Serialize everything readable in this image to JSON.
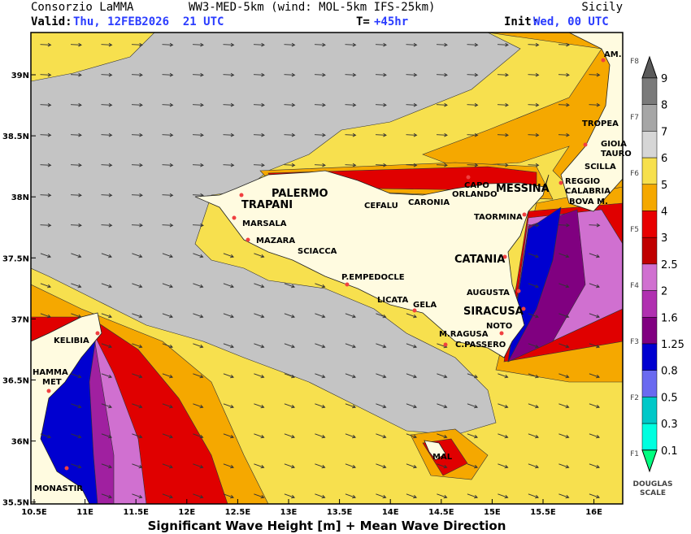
{
  "header": {
    "agency": "Consorzio LaMMA",
    "model": "WW3-MED-5km (wind: MOL-5km IFS-25km)",
    "region": "Sicily",
    "valid_label": "Valid:",
    "valid_time": "Thu, 12FEB2026  21 UTC",
    "step_label": "T=",
    "step": "+45hr",
    "init_label": "Init:",
    "init_time": "Wed, 00 UTC"
  },
  "map": {
    "lon_ticks": [
      "10.5E",
      "11E",
      "11.5E",
      "12E",
      "12.5E",
      "13E",
      "13.5E",
      "14E",
      "14.5E",
      "15E",
      "15.5E",
      "16E"
    ],
    "lat_ticks": [
      "39N",
      "38.5N",
      "38N",
      "37.5N",
      "37N",
      "36.5N",
      "36N",
      "35.5N"
    ],
    "places": [
      {
        "label": "AM."
      },
      {
        "label": "TROPEA"
      },
      {
        "label": "GIOIA"
      },
      {
        "label": "TAURO"
      },
      {
        "label": "SCILLA"
      },
      {
        "label": "REGGIO"
      },
      {
        "label": "CALABRIA"
      },
      {
        "label": "BOVA M."
      },
      {
        "label": "CAPO"
      },
      {
        "label": "ORLANDO"
      },
      {
        "label": "MESSINA"
      },
      {
        "label": "PALERMO"
      },
      {
        "label": "CEFALU"
      },
      {
        "label": "CARONIA"
      },
      {
        "label": "TRAPANI"
      },
      {
        "label": "MARSALA"
      },
      {
        "label": "MAZARA"
      },
      {
        "label": "SCIACCA"
      },
      {
        "label": "TAORMINA"
      },
      {
        "label": "CATANIA"
      },
      {
        "label": "P.EMPEDOCLE"
      },
      {
        "label": "AUGUSTA"
      },
      {
        "label": "SIRACUSA"
      },
      {
        "label": "LICATA"
      },
      {
        "label": "GELA"
      },
      {
        "label": "NOTO"
      },
      {
        "label": "M.RAGUSA"
      },
      {
        "label": "C.PASSERO"
      },
      {
        "label": "KELIBIA"
      },
      {
        "label": "HAMMA"
      },
      {
        "label": "MET"
      },
      {
        "label": "MAL"
      },
      {
        "label": "MONASTIR"
      }
    ]
  },
  "legend": {
    "levels": [
      "9",
      "8",
      "7",
      "6",
      "5",
      "4",
      "3",
      "2.5",
      "2",
      "1.6",
      "1.25",
      "0.8",
      "0.5",
      "0.3",
      "0.1"
    ],
    "douglas": [
      "F8",
      "F7",
      "F6",
      "F5",
      "F4",
      "F3",
      "F2",
      "F1"
    ],
    "scale_label": [
      "DOUGLAS",
      "SCALE"
    ]
  },
  "footer": "Significant Wave Height [m] + Mean Wave Direction"
}
